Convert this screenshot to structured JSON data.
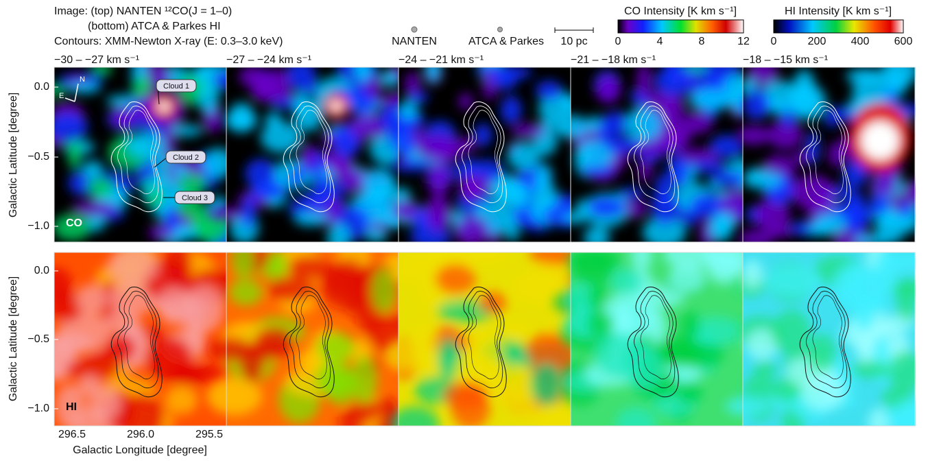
{
  "header": {
    "image_lines": [
      "Image: (top) NANTEN ¹²CO(J = 1–0)",
      "(bottom) ATCA & Parkes HI"
    ],
    "contour_line": "Contours: XMM-Newton X-ray (E: 0.3–3.0 keV)"
  },
  "beams": [
    "NANTEN",
    "ATCA & Parkes"
  ],
  "scale_bar": "10 pc",
  "colorbars": [
    {
      "label": "CO Intensity [K km s⁻¹]",
      "ticks": [
        "0",
        "4",
        "8",
        "12"
      ]
    },
    {
      "label": "HI Intensity [K km s⁻¹]",
      "ticks": [
        "0",
        "200",
        "400",
        "600"
      ]
    }
  ],
  "velocities": [
    "−30 – −27 km s⁻¹",
    "−27 – −24 km s⁻¹",
    "−24 – −21 km s⁻¹",
    "−21 – −18 km s⁻¹",
    "−18 – −15 km s⁻¹"
  ],
  "clouds": [
    "Cloud 1",
    "Cloud 2",
    "Cloud 3"
  ],
  "compass": [
    "N",
    "E"
  ],
  "panel_tags": [
    "CO",
    "HI"
  ],
  "y_axis": {
    "label": "Galactic Latitude [degree]",
    "ticks": [
      "0.0",
      "−0.5",
      "−1.0"
    ]
  },
  "x_axis": {
    "label": "Galactic Longitude [degree]",
    "ticks": [
      "296.5",
      "296.0",
      "295.5"
    ]
  }
}
